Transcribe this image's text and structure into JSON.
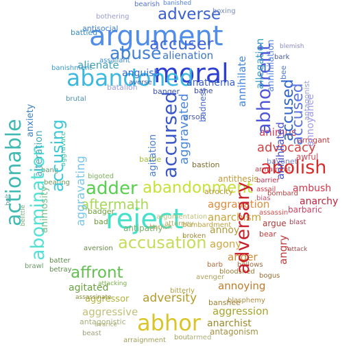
{
  "words": [
    {
      "text": "argument",
      "color": "#4f8de8"
    },
    {
      "text": "moral",
      "color": "#2f3fd0"
    },
    {
      "text": "reject",
      "color": "#45e0c8"
    },
    {
      "text": "abandoned",
      "color": "#3fb8e0"
    },
    {
      "text": "abhor",
      "color": "#d9c52a"
    },
    {
      "text": "abolish",
      "color": "#d92a2a"
    },
    {
      "text": "accused",
      "color": "#2e63c9"
    },
    {
      "text": "abhorrent",
      "color": "#4f55d8"
    },
    {
      "text": "abandonment",
      "color": "#c6e13a"
    },
    {
      "text": "adversary",
      "color": "#c91e2a"
    },
    {
      "text": "abuse",
      "color": "#3f7fd6"
    },
    {
      "text": "adverse",
      "color": "#3a60d0"
    },
    {
      "text": "accuser",
      "color": "#4168d6"
    },
    {
      "text": "abomination",
      "color": "#55e0d5"
    },
    {
      "text": "actionable",
      "color": "#3fb9b2"
    },
    {
      "text": "accusing",
      "color": "#3ec7d6"
    },
    {
      "text": "accusation",
      "color": "#c6dc5a"
    },
    {
      "text": "adder",
      "color": "#59cf4e"
    },
    {
      "text": "affront",
      "color": "#64bf52"
    },
    {
      "text": "aftermath",
      "color": "#a8d85a"
    },
    {
      "text": "accused",
      "color": "#5a74e0"
    },
    {
      "text": "accursed",
      "color": "#3a58c8"
    },
    {
      "text": "aggravated",
      "color": "#4a86d8"
    },
    {
      "text": "aggravating",
      "color": "#7cc6e8"
    },
    {
      "text": "alienation",
      "color": "#3b75cc"
    },
    {
      "text": "alienate",
      "color": "#3fa0b8"
    },
    {
      "text": "anguish",
      "color": "#2e6bd1"
    },
    {
      "text": "anathema",
      "color": "#3a5cc7"
    },
    {
      "text": "agitation",
      "color": "#4b7ed6"
    },
    {
      "text": "annihilate",
      "color": "#3f84e0"
    },
    {
      "text": "annihilated",
      "color": "#4a4ec8"
    },
    {
      "text": "annihilation",
      "color": "#5a88e0"
    },
    {
      "text": "allegation",
      "color": "#3aa0c6"
    },
    {
      "text": "annoyance",
      "color": "#9a9af0"
    },
    {
      "text": "advocacy",
      "color": "#d04040"
    },
    {
      "text": "animus",
      "color": "#c83b5b"
    },
    {
      "text": "ambush",
      "color": "#d03648"
    },
    {
      "text": "anarchy",
      "color": "#c1223a"
    },
    {
      "text": "angry",
      "color": "#c23a3a"
    },
    {
      "text": "anger",
      "color": "#d08a30"
    },
    {
      "text": "aggravation",
      "color": "#e08a3a"
    },
    {
      "text": "anarchism",
      "color": "#c9a232"
    },
    {
      "text": "annoy",
      "color": "#b09a3a"
    },
    {
      "text": "agony",
      "color": "#d0a840"
    },
    {
      "text": "annoying",
      "color": "#c07a2a"
    },
    {
      "text": "aggression",
      "color": "#a8a42a"
    },
    {
      "text": "aggressive",
      "color": "#c0c07a"
    },
    {
      "text": "agitated",
      "color": "#6aa040"
    },
    {
      "text": "adversity",
      "color": "#b39a2a"
    },
    {
      "text": "anarchist",
      "color": "#9a8a2a"
    },
    {
      "text": "aggressor",
      "color": "#b2b23a"
    },
    {
      "text": "antagonism",
      "color": "#a49040"
    },
    {
      "text": "antagonistic",
      "color": "#a6b07a"
    },
    {
      "text": "animosity",
      "color": "#7cc08a"
    },
    {
      "text": "aggravate",
      "color": "#4ac5b0"
    },
    {
      "text": "alteration",
      "color": "#4aa8c0"
    },
    {
      "text": "anxiety",
      "color": "#3a7ec0"
    },
    {
      "text": "antisocial",
      "color": "#3a7fd0"
    },
    {
      "text": "battled",
      "color": "#3a8ec0"
    },
    {
      "text": "assailant",
      "color": "#3e8ed0"
    },
    {
      "text": "banishment",
      "color": "#3a9ad0"
    },
    {
      "text": "bearish",
      "color": "#4f70d0"
    },
    {
      "text": "banished",
      "color": "#5080e0"
    },
    {
      "text": "bayonet",
      "color": "#7a8ad0"
    },
    {
      "text": "bark",
      "color": "#4a5aa0"
    },
    {
      "text": "blemish",
      "color": "#8a8ad0"
    },
    {
      "text": "arrogant",
      "color": "#c03a3a"
    },
    {
      "text": "awful",
      "color": "#d04a5a"
    },
    {
      "text": "barrier",
      "color": "#c03050"
    },
    {
      "text": "assail",
      "color": "#d03a4a"
    },
    {
      "text": "bias",
      "color": "#c0506a"
    },
    {
      "text": "barbaric",
      "color": "#d04060"
    },
    {
      "text": "argue",
      "color": "#b03a3a"
    },
    {
      "text": "blast",
      "color": "#a04050"
    },
    {
      "text": "bear",
      "color": "#c03a3a"
    },
    {
      "text": "assassin",
      "color": "#d05050"
    },
    {
      "text": "armament",
      "color": "#c04050"
    },
    {
      "text": "antithesis",
      "color": "#c09a3a"
    },
    {
      "text": "atrocity",
      "color": "#b89a3a"
    },
    {
      "text": "bastion",
      "color": "#7a6a2a"
    },
    {
      "text": "battle",
      "color": "#a0c03a"
    },
    {
      "text": "attacking",
      "color": "#7ab04a"
    },
    {
      "text": "bigoted",
      "color": "#7ab05a"
    },
    {
      "text": "attorney",
      "color": "#b0b06a"
    },
    {
      "text": "argumentation",
      "color": "#c0c07a"
    },
    {
      "text": "badger",
      "color": "#6aa03a"
    },
    {
      "text": "bad",
      "color": "#6a9a3a"
    },
    {
      "text": "antipathy",
      "color": "#7ab06a"
    },
    {
      "text": "banish",
      "color": "#c0b06a"
    },
    {
      "text": "bombardment",
      "color": "#c0a03a"
    },
    {
      "text": "broken",
      "color": "#a08a3a"
    },
    {
      "text": "batter",
      "color": "#5a8a4a"
    },
    {
      "text": "betray",
      "color": "#5a8a4a"
    },
    {
      "text": "brawl",
      "color": "#6a9a6a"
    },
    {
      "text": "assassinate",
      "color": "#8a8a3a"
    },
    {
      "text": "banshee",
      "color": "#a08030"
    },
    {
      "text": "blasphemy",
      "color": "#b08a3a"
    },
    {
      "text": "bloodshed",
      "color": "#9a7a30"
    },
    {
      "text": "bogus",
      "color": "#a06a30"
    },
    {
      "text": "bellows",
      "color": "#a06a40"
    },
    {
      "text": "barb",
      "color": "#b06a3a"
    },
    {
      "text": "bitterly",
      "color": "#b0a040"
    },
    {
      "text": "avenger",
      "color": "#b0a05a"
    },
    {
      "text": "armed",
      "color": "#b0b07a"
    },
    {
      "text": "bout",
      "color": "#a0a05a"
    },
    {
      "text": "arraignment",
      "color": "#a0a05a"
    },
    {
      "text": "beast",
      "color": "#a0a07a"
    },
    {
      "text": "avarice",
      "color": "#b0b07a"
    },
    {
      "text": "aversion",
      "color": "#6a8a4a"
    },
    {
      "text": "bang",
      "color": "#5a9a6a"
    },
    {
      "text": "belittle",
      "color": "#7ab07a"
    },
    {
      "text": "beating",
      "color": "#6a9a5a"
    },
    {
      "text": "bolt",
      "color": "#5aa0a0"
    },
    {
      "text": "brutal",
      "color": "#4a90b0"
    },
    {
      "text": "batalion",
      "color": "#9aa0e0"
    },
    {
      "text": "arson",
      "color": "#4a5ab0"
    },
    {
      "text": "bane",
      "color": "#3a4aa0"
    },
    {
      "text": "banger",
      "color": "#3a50b0"
    },
    {
      "text": "badness",
      "color": "#4a6ad0"
    },
    {
      "text": "averse",
      "color": "#3a5ab0"
    },
    {
      "text": "bee",
      "color": "#4a7ad0"
    },
    {
      "text": "boxing",
      "color": "#7a8ac0"
    },
    {
      "text": "bothering",
      "color": "#9a9ad0"
    },
    {
      "text": "antagonist",
      "color": "#9aa0d0"
    },
    {
      "text": "bombard",
      "color": "#c04040"
    },
    {
      "text": "attack",
      "color": "#9a4a4a"
    }
  ]
}
